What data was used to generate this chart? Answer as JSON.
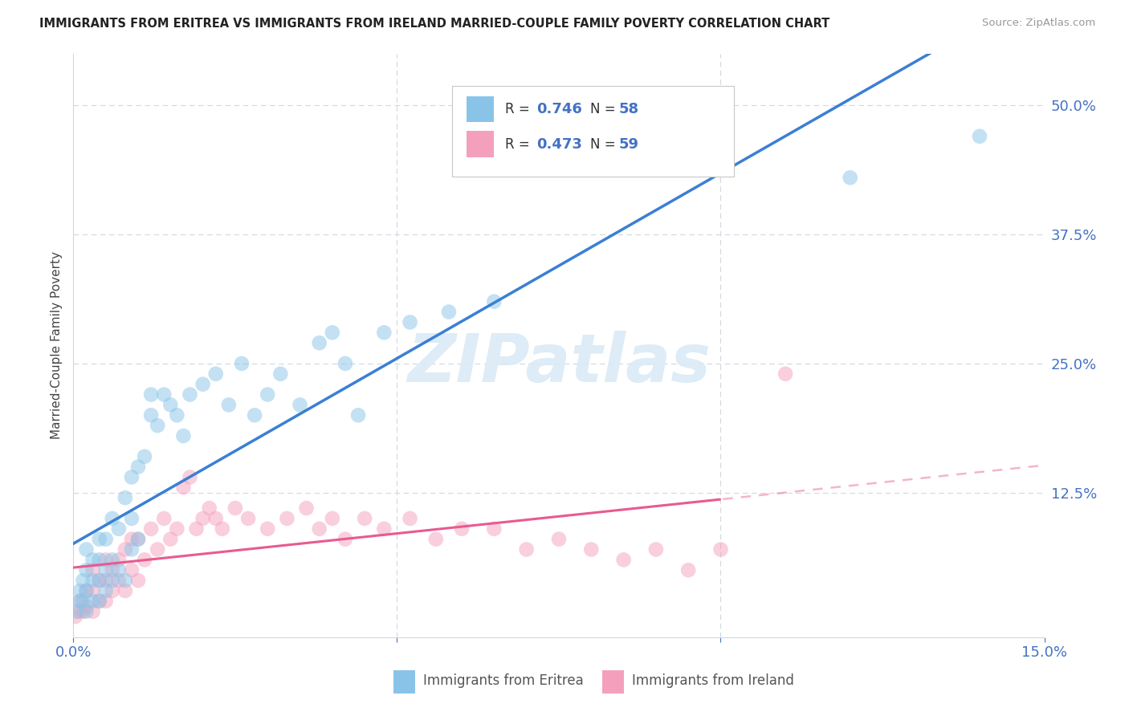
{
  "title": "IMMIGRANTS FROM ERITREA VS IMMIGRANTS FROM IRELAND MARRIED-COUPLE FAMILY POVERTY CORRELATION CHART",
  "source": "Source: ZipAtlas.com",
  "ylabel": "Married-Couple Family Poverty",
  "xlim": [
    0.0,
    0.15
  ],
  "ylim": [
    -0.015,
    0.55
  ],
  "ytick_labels": [
    "12.5%",
    "25.0%",
    "37.5%",
    "50.0%"
  ],
  "ytick_positions": [
    0.125,
    0.25,
    0.375,
    0.5
  ],
  "watermark": "ZIPatlas",
  "legend_bottom1": "Immigrants from Eritrea",
  "legend_bottom2": "Immigrants from Ireland",
  "color_eritrea": "#89c4e8",
  "color_ireland": "#f4a0bc",
  "color_line_eritrea": "#3a7fd4",
  "color_line_ireland": "#e85a90",
  "grid_color": "#d0d8e0",
  "background": "#ffffff",
  "eritrea_x": [
    0.0005,
    0.001,
    0.001,
    0.0015,
    0.0015,
    0.002,
    0.002,
    0.002,
    0.002,
    0.003,
    0.003,
    0.003,
    0.004,
    0.004,
    0.004,
    0.004,
    0.005,
    0.005,
    0.005,
    0.006,
    0.006,
    0.006,
    0.007,
    0.007,
    0.008,
    0.008,
    0.009,
    0.009,
    0.009,
    0.01,
    0.01,
    0.011,
    0.012,
    0.012,
    0.013,
    0.014,
    0.015,
    0.016,
    0.017,
    0.018,
    0.02,
    0.022,
    0.024,
    0.026,
    0.028,
    0.03,
    0.032,
    0.035,
    0.038,
    0.04,
    0.042,
    0.044,
    0.048,
    0.052,
    0.058,
    0.065,
    0.12,
    0.14
  ],
  "eritrea_y": [
    0.01,
    0.02,
    0.03,
    0.02,
    0.04,
    0.01,
    0.03,
    0.05,
    0.07,
    0.02,
    0.04,
    0.06,
    0.02,
    0.04,
    0.06,
    0.08,
    0.03,
    0.05,
    0.08,
    0.04,
    0.06,
    0.1,
    0.05,
    0.09,
    0.04,
    0.12,
    0.07,
    0.1,
    0.14,
    0.08,
    0.15,
    0.16,
    0.2,
    0.22,
    0.19,
    0.22,
    0.21,
    0.2,
    0.18,
    0.22,
    0.23,
    0.24,
    0.21,
    0.25,
    0.2,
    0.22,
    0.24,
    0.21,
    0.27,
    0.28,
    0.25,
    0.2,
    0.28,
    0.29,
    0.3,
    0.31,
    0.43,
    0.47
  ],
  "ireland_x": [
    0.0003,
    0.001,
    0.001,
    0.0015,
    0.002,
    0.002,
    0.003,
    0.003,
    0.003,
    0.004,
    0.004,
    0.005,
    0.005,
    0.005,
    0.006,
    0.006,
    0.007,
    0.007,
    0.008,
    0.008,
    0.009,
    0.009,
    0.01,
    0.01,
    0.011,
    0.012,
    0.013,
    0.014,
    0.015,
    0.016,
    0.017,
    0.018,
    0.019,
    0.02,
    0.021,
    0.022,
    0.023,
    0.025,
    0.027,
    0.03,
    0.033,
    0.036,
    0.038,
    0.04,
    0.042,
    0.045,
    0.048,
    0.052,
    0.056,
    0.06,
    0.065,
    0.07,
    0.075,
    0.08,
    0.085,
    0.09,
    0.095,
    0.1,
    0.11
  ],
  "ireland_y": [
    0.005,
    0.01,
    0.02,
    0.01,
    0.015,
    0.03,
    0.01,
    0.03,
    0.05,
    0.02,
    0.04,
    0.02,
    0.04,
    0.06,
    0.03,
    0.05,
    0.04,
    0.06,
    0.03,
    0.07,
    0.05,
    0.08,
    0.04,
    0.08,
    0.06,
    0.09,
    0.07,
    0.1,
    0.08,
    0.09,
    0.13,
    0.14,
    0.09,
    0.1,
    0.11,
    0.1,
    0.09,
    0.11,
    0.1,
    0.09,
    0.1,
    0.11,
    0.09,
    0.1,
    0.08,
    0.1,
    0.09,
    0.1,
    0.08,
    0.09,
    0.09,
    0.07,
    0.08,
    0.07,
    0.06,
    0.07,
    0.05,
    0.07,
    0.24
  ],
  "legend_R1": "0.746",
  "legend_N1": "58",
  "legend_R2": "0.473",
  "legend_N2": "59"
}
